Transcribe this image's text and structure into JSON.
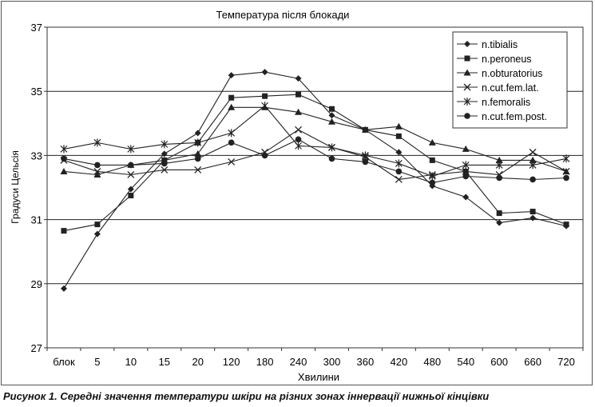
{
  "caption": "Рисунок 1. Середні значення температури шкіри на різних зонах іннервації нижньої кінцівки",
  "chart_data": {
    "type": "line",
    "title": "Температура після блокади",
    "xlabel": "Хвилини",
    "ylabel": "Градуси Цельсія",
    "categories": [
      "блок",
      "5",
      "10",
      "15",
      "20",
      "120",
      "180",
      "240",
      "300",
      "360",
      "420",
      "480",
      "540",
      "600",
      "660",
      "720"
    ],
    "ylim": [
      27,
      37
    ],
    "yticks": [
      27,
      29,
      31,
      33,
      35,
      37
    ],
    "grid": "horizontal",
    "legend_position": "top-right",
    "line_color": "#222222",
    "series": [
      {
        "name": "n.tibialis",
        "marker": "diamond",
        "values": [
          28.85,
          30.55,
          31.95,
          33.05,
          33.7,
          35.5,
          35.6,
          35.4,
          34.25,
          33.8,
          33.1,
          32.05,
          31.7,
          30.9,
          31.05,
          30.8
        ]
      },
      {
        "name": "n.peroneus",
        "marker": "square",
        "values": [
          30.65,
          30.85,
          31.75,
          32.85,
          33.4,
          34.8,
          34.85,
          34.9,
          34.45,
          33.8,
          33.6,
          32.85,
          32.5,
          31.2,
          31.25,
          30.85
        ]
      },
      {
        "name": "n.obturatorius",
        "marker": "triangle",
        "values": [
          32.5,
          32.4,
          32.7,
          32.85,
          33.05,
          34.5,
          34.5,
          34.35,
          34.05,
          33.8,
          33.9,
          33.4,
          33.2,
          32.85,
          32.85,
          32.5
        ]
      },
      {
        "name": "n.cut.fem.lat.",
        "marker": "x",
        "values": [
          32.85,
          32.5,
          32.4,
          32.55,
          32.55,
          32.8,
          33.1,
          33.8,
          33.25,
          32.95,
          32.25,
          32.4,
          32.5,
          32.4,
          33.1,
          32.5
        ]
      },
      {
        "name": "n.femoralis",
        "marker": "star",
        "values": [
          33.2,
          33.4,
          33.2,
          33.35,
          33.4,
          33.7,
          34.55,
          33.3,
          33.25,
          33.0,
          32.75,
          32.35,
          32.7,
          32.7,
          32.7,
          32.9
        ]
      },
      {
        "name": "n.cut.fem.post.",
        "marker": "circle",
        "values": [
          32.9,
          32.7,
          32.7,
          32.75,
          32.9,
          33.4,
          33.0,
          33.5,
          32.9,
          32.8,
          32.5,
          32.15,
          32.35,
          32.3,
          32.25,
          32.3
        ]
      }
    ]
  }
}
